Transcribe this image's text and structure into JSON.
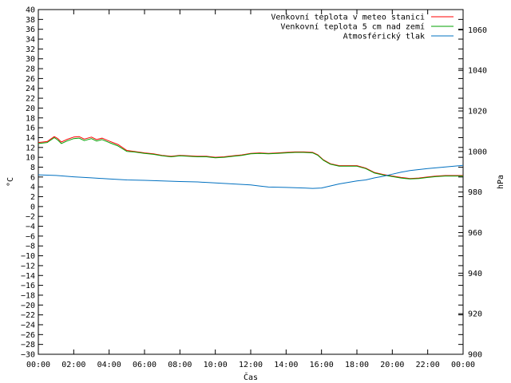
{
  "chart_data": {
    "type": "line",
    "xlabel": "Čas",
    "ylabel_left": "°C",
    "ylabel_right": "hPa",
    "x_ticks": [
      "00:00",
      "02:00",
      "04:00",
      "06:00",
      "08:00",
      "10:00",
      "12:00",
      "14:00",
      "16:00",
      "18:00",
      "20:00",
      "22:00",
      "00:00"
    ],
    "x_range_hours": [
      0,
      24
    ],
    "y_left_range": [
      -30,
      40
    ],
    "y_left_tick_step": 2,
    "y_right_range": [
      900,
      1070
    ],
    "y_right_ticks": [
      900,
      920,
      940,
      960,
      980,
      1000,
      1020,
      1040,
      1060
    ],
    "grid": false,
    "legend_position": "top-right",
    "series": [
      {
        "name": "Venkovní teplota v meteo stanici",
        "axis": "left",
        "color": "#ff0000",
        "x": [
          0,
          0.5,
          0.9,
          1.1,
          1.3,
          1.6,
          2,
          2.3,
          2.6,
          3,
          3.3,
          3.6,
          4,
          4.5,
          5,
          5.4,
          6,
          6.5,
          7,
          7.5,
          8,
          8.5,
          9,
          9.5,
          10,
          10.5,
          11,
          11.5,
          12,
          12.5,
          13,
          13.5,
          14,
          14.5,
          15,
          15.5,
          15.8,
          16.1,
          16.5,
          17,
          17.5,
          18,
          18.5,
          19,
          19.5,
          20,
          20.5,
          21,
          21.5,
          22,
          22.5,
          23,
          23.5,
          24
        ],
        "y": [
          13,
          13.2,
          14.2,
          13.8,
          13.1,
          13.6,
          14.1,
          14.2,
          13.7,
          14.1,
          13.6,
          13.9,
          13.3,
          12.6,
          11.4,
          11.2,
          10.9,
          10.7,
          10.4,
          10.2,
          10.4,
          10.3,
          10.2,
          10.2,
          10,
          10.1,
          10.3,
          10.5,
          10.8,
          10.9,
          10.8,
          10.9,
          11,
          11.1,
          11.1,
          11,
          10.5,
          9.5,
          8.7,
          8.3,
          8.3,
          8.3,
          7.8,
          6.9,
          6.5,
          6.2,
          5.9,
          5.7,
          5.8,
          6,
          6.2,
          6.3,
          6.3,
          6.3
        ]
      },
      {
        "name": "Venkovní teplota 5 cm nad zemí",
        "axis": "left",
        "color": "#00a000",
        "x": [
          0,
          0.5,
          0.9,
          1.1,
          1.3,
          1.6,
          2,
          2.3,
          2.6,
          3,
          3.3,
          3.6,
          4,
          4.5,
          5,
          5.4,
          6,
          6.5,
          7,
          7.5,
          8,
          8.5,
          9,
          9.5,
          10,
          10.5,
          11,
          11.5,
          12,
          12.5,
          13,
          13.5,
          14,
          14.5,
          15,
          15.5,
          15.8,
          16.1,
          16.5,
          17,
          17.5,
          18,
          18.5,
          19,
          19.5,
          20,
          20.5,
          21,
          21.5,
          22,
          22.5,
          23,
          23.5,
          24
        ],
        "y": [
          12.8,
          13,
          14,
          13.5,
          12.8,
          13.3,
          13.8,
          13.9,
          13.4,
          13.8,
          13.3,
          13.6,
          13,
          12.3,
          11.2,
          11.1,
          10.8,
          10.6,
          10.3,
          10.1,
          10.3,
          10.2,
          10.1,
          10.1,
          9.9,
          10,
          10.2,
          10.4,
          10.7,
          10.8,
          10.7,
          10.8,
          10.9,
          11,
          11,
          10.9,
          10.4,
          9.4,
          8.6,
          8.2,
          8.2,
          8.2,
          7.7,
          6.8,
          6.4,
          6.1,
          5.8,
          5.6,
          5.7,
          5.9,
          6.1,
          6.2,
          6.2,
          6.2
        ]
      },
      {
        "name": "Atmosférický tlak",
        "axis": "right",
        "color": "#0070c0",
        "x": [
          0,
          1,
          2,
          3,
          4,
          5,
          6,
          7,
          8,
          9,
          10,
          11,
          12,
          12.5,
          13,
          14,
          15,
          15.5,
          16,
          17,
          18,
          18.5,
          19,
          19.5,
          20,
          20.5,
          21,
          22,
          23,
          24
        ],
        "y": [
          988.5,
          988.2,
          987.5,
          987,
          986.5,
          986,
          985.8,
          985.5,
          985.2,
          985,
          984.5,
          984,
          983.5,
          983,
          982.5,
          982.3,
          982,
          981.8,
          982,
          984,
          985.5,
          986,
          987,
          987.8,
          988.8,
          989.8,
          990.6,
          991.6,
          992.4,
          993.2
        ]
      }
    ]
  }
}
